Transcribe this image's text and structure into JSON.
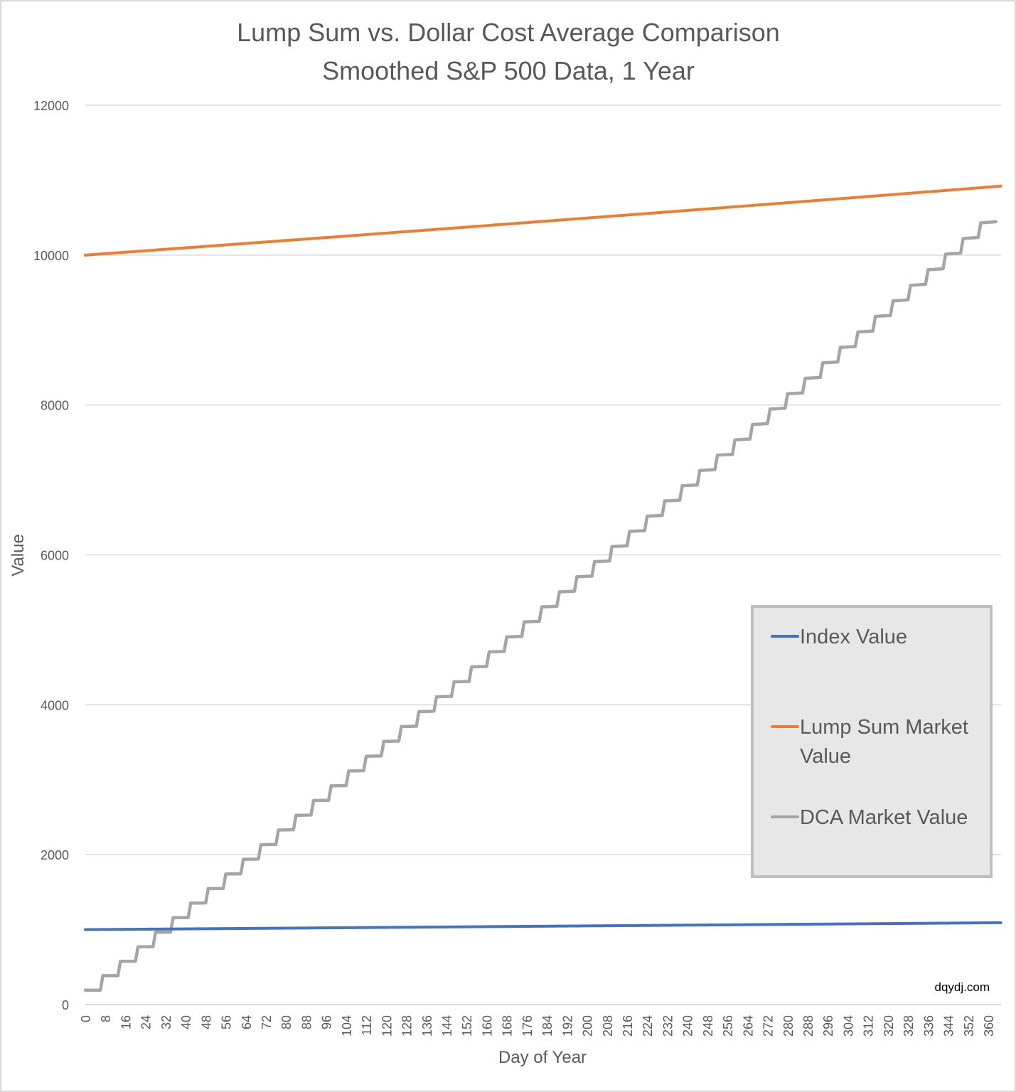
{
  "chart_data": {
    "type": "line",
    "title": "Lump Sum vs. Dollar Cost Average Comparison",
    "subtitle": "Smoothed S&P 500 Data, 1 Year",
    "xlabel": "Day of Year",
    "ylabel": "Value",
    "xlim": [
      0,
      365
    ],
    "ylim": [
      0,
      12000
    ],
    "yticks": [
      0,
      2000,
      4000,
      6000,
      8000,
      10000,
      12000
    ],
    "xticks": [
      0,
      8,
      16,
      24,
      32,
      40,
      48,
      56,
      64,
      72,
      80,
      88,
      96,
      104,
      112,
      120,
      128,
      136,
      144,
      152,
      160,
      168,
      176,
      184,
      192,
      200,
      208,
      216,
      224,
      232,
      240,
      248,
      256,
      264,
      272,
      280,
      288,
      296,
      304,
      312,
      320,
      328,
      336,
      344,
      352,
      360
    ],
    "grid": true,
    "legend_position": "right",
    "series": [
      {
        "name": "Index Value",
        "color": "#4472C4",
        "style": "line",
        "x": [
          0,
          91,
          182,
          273,
          364
        ],
        "values": [
          1000,
          1022,
          1045,
          1068,
          1092
        ]
      },
      {
        "name": "Lump Sum Market Value",
        "color": "#ED7D31",
        "style": "line",
        "x": [
          0,
          91,
          182,
          273,
          364
        ],
        "values": [
          10000,
          10222,
          10449,
          10681,
          10918
        ]
      },
      {
        "name": "DCA Market Value",
        "color": "#A5A5A5",
        "style": "step-weekly",
        "step_days": 7,
        "values": [
          192,
          385,
          578,
          771,
          965,
          1159,
          1353,
          1548,
          1742,
          1938,
          2133,
          2329,
          2525,
          2722,
          2918,
          3116,
          3313,
          3511,
          3709,
          3908,
          4106,
          4305,
          4505,
          4705,
          4905,
          5106,
          5306,
          5507,
          5708,
          5910,
          6112,
          6314,
          6517,
          6720,
          6923,
          7127,
          7331,
          7535,
          7740,
          7945,
          8150,
          8356,
          8562,
          8768,
          8974,
          9182,
          9389,
          9597,
          9804,
          10013,
          10221,
          10430
        ]
      }
    ],
    "watermark": "dqydj.com"
  }
}
